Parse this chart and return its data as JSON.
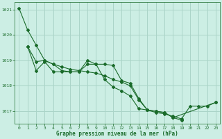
{
  "title": "Graphe pression niveau de la mer (hPa)",
  "bg_color": "#cceee4",
  "grid_color": "#aad4c8",
  "line_color": "#1a6b2a",
  "xlim": [
    -0.5,
    23.5
  ],
  "ylim": [
    1016.5,
    1021.3
  ],
  "yticks": [
    1017,
    1018,
    1019,
    1020,
    1021
  ],
  "xticks": [
    0,
    1,
    2,
    3,
    4,
    5,
    6,
    7,
    8,
    9,
    10,
    11,
    12,
    13,
    14,
    15,
    16,
    17,
    18,
    19,
    20,
    21,
    22,
    23
  ],
  "series": [
    {
      "x": [
        0,
        1,
        2,
        3,
        4,
        5,
        6,
        7,
        8,
        9,
        10,
        11,
        12,
        13,
        14,
        15,
        16,
        17,
        18,
        19,
        20,
        21,
        22,
        23
      ],
      "y": [
        1021.05,
        1020.2,
        1019.6,
        1019.0,
        1018.85,
        1018.75,
        1018.65,
        1018.6,
        1018.55,
        1018.5,
        1018.4,
        1018.25,
        1018.15,
        1018.0,
        1017.45,
        1017.05,
        1016.95,
        1016.9,
        1016.8,
        1016.7,
        1017.2,
        1017.2,
        1017.2,
        1017.35
      ]
    },
    {
      "x": [
        1,
        2,
        3,
        4,
        5,
        6,
        7,
        8,
        9,
        10,
        11,
        12,
        13,
        14,
        15,
        16,
        17,
        18,
        19
      ],
      "y": [
        1019.55,
        1018.95,
        1019.0,
        1018.85,
        1018.6,
        1018.55,
        1018.55,
        1019.0,
        1018.85,
        1018.85,
        1018.8,
        1018.2,
        1018.1,
        1017.5,
        1017.05,
        1017.0,
        1016.95,
        1016.75,
        1016.65
      ]
    },
    {
      "x": [
        1,
        2,
        3,
        4,
        5,
        6,
        7,
        8,
        9,
        10,
        11,
        12,
        13,
        14,
        15,
        16,
        17,
        18,
        23
      ],
      "y": [
        1019.55,
        1018.6,
        1018.95,
        1018.55,
        1018.55,
        1018.55,
        1018.55,
        1018.85,
        1018.85,
        1018.25,
        1017.95,
        1017.8,
        1017.6,
        1017.1,
        1017.05,
        1017.0,
        1016.95,
        1016.75,
        1017.35
      ]
    }
  ]
}
